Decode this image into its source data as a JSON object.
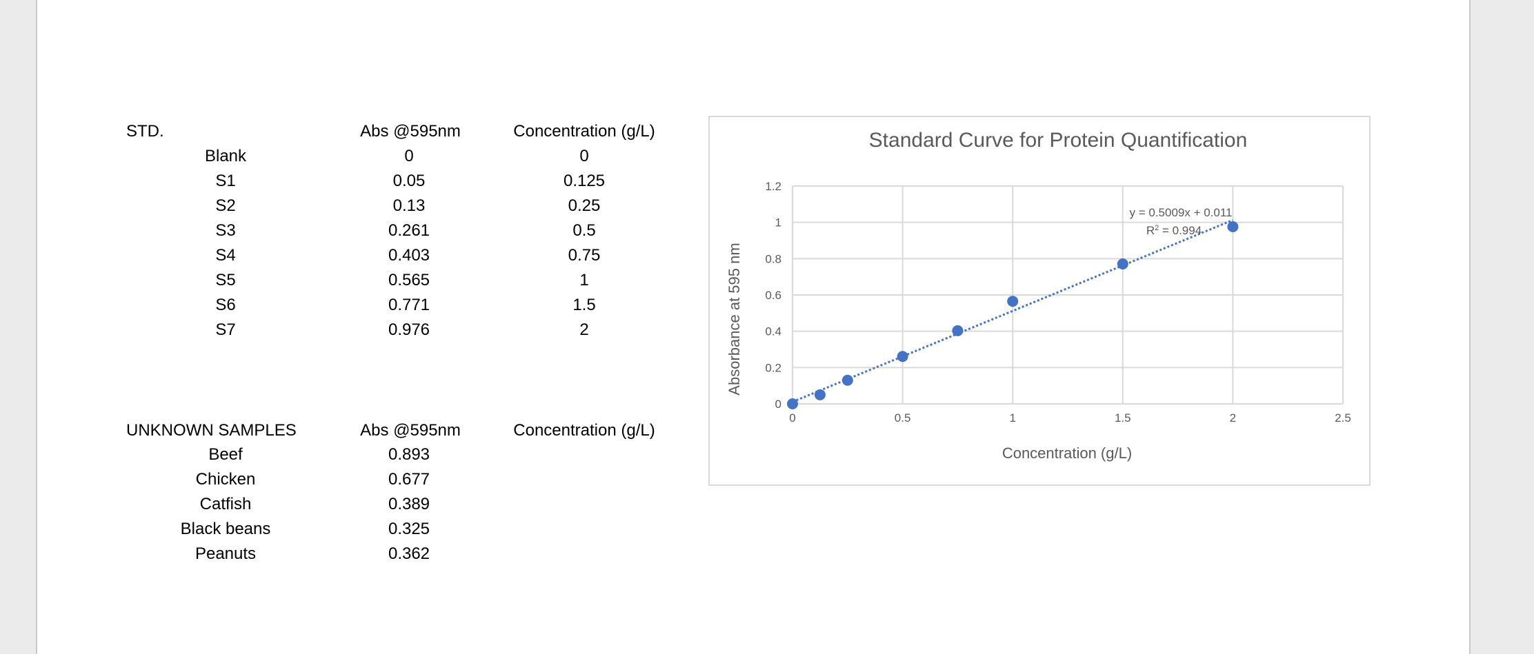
{
  "std_table": {
    "header": {
      "name": "STD.",
      "abs": "Abs @595nm",
      "conc": "Concentration (g/L)"
    },
    "rows": [
      {
        "name": "Blank",
        "abs": "0",
        "conc": "0"
      },
      {
        "name": "S1",
        "abs": "0.05",
        "conc": "0.125"
      },
      {
        "name": "S2",
        "abs": "0.13",
        "conc": "0.25"
      },
      {
        "name": "S3",
        "abs": "0.261",
        "conc": "0.5"
      },
      {
        "name": "S4",
        "abs": "0.403",
        "conc": "0.75"
      },
      {
        "name": "S5",
        "abs": "0.565",
        "conc": "1"
      },
      {
        "name": "S6",
        "abs": "0.771",
        "conc": "1.5"
      },
      {
        "name": "S7",
        "abs": "0.976",
        "conc": "2"
      }
    ]
  },
  "unknown_table": {
    "header": {
      "name": "UNKNOWN SAMPLES",
      "abs": "Abs @595nm",
      "conc": "Concentration (g/L)"
    },
    "rows": [
      {
        "name": "Beef",
        "abs": "0.893"
      },
      {
        "name": "Chicken",
        "abs": "0.677"
      },
      {
        "name": "Catfish",
        "abs": "0.389"
      },
      {
        "name": "Black beans",
        "abs": "0.325"
      },
      {
        "name": "Peanuts",
        "abs": "0.362"
      }
    ]
  },
  "chart_data": {
    "type": "scatter",
    "title": "Standard Curve for Protein Quantification",
    "xlabel": "Concentration (g/L)",
    "ylabel": "Absorbance at 595 nm",
    "xlim": [
      0,
      2.5
    ],
    "ylim": [
      0,
      1.2
    ],
    "xticks": [
      "0",
      "0.5",
      "1",
      "1.5",
      "2",
      "2.5"
    ],
    "yticks": [
      "0",
      "0.2",
      "0.4",
      "0.6",
      "0.8",
      "1",
      "1.2"
    ],
    "grid": true,
    "series": [
      {
        "x": [
          0,
          0.125,
          0.25,
          0.5,
          0.75,
          1,
          1.5,
          2
        ],
        "y": [
          0,
          0.05,
          0.13,
          0.261,
          0.403,
          0.565,
          0.771,
          0.976
        ]
      }
    ],
    "trendline": {
      "slope": 0.5009,
      "intercept": 0.011,
      "equation": "y = 0.5009x + 0.011",
      "r2_label": "R",
      "r2_sup": "2",
      "r2_value": " = 0.994"
    },
    "colors": {
      "marker": "#4472c4",
      "trendline": "#4472c4",
      "grid": "#d9d9d9",
      "text": "#595959"
    }
  }
}
